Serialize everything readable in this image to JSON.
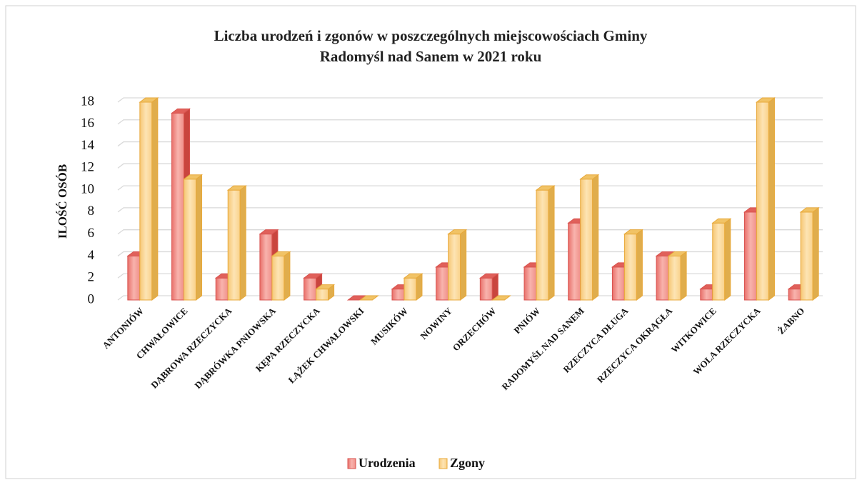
{
  "chart_data": {
    "type": "bar3d",
    "title": "Liczba urodzeń i zgonów w poszczególnych miejscowościach Gminy Radomyśl nad Sanem w 2021 roku",
    "y_label": "ILOŚĆ OSÓB",
    "categories": [
      "ANTONIÓW",
      "CHWAŁOWICE",
      "DĄBROWA RZECZYCKA",
      "DĄBRÓWKA PNIOWSKA",
      "KĘPA RZECZYCKA",
      "ŁĄŻEK CHWAŁOWSKI",
      "MUSIKÓW",
      "NOWINY",
      "ORZECHÓW",
      "PNIÓW",
      "RADOMYŚL NAD SANEM",
      "RZECZYCA DŁUGA",
      "RZECZYCA OKRĄGŁA",
      "WITKOWICE",
      "WOLA RZECZYCKA",
      "ŻABNO"
    ],
    "series": [
      {
        "name": "Urodzenia",
        "color": "#f4a29b",
        "values": [
          4,
          17,
          2,
          6,
          2,
          0,
          1,
          3,
          2,
          3,
          7,
          3,
          4,
          1,
          8,
          1
        ]
      },
      {
        "name": "Zgony",
        "color": "#fdd99a",
        "values": [
          18,
          11,
          10,
          4,
          1,
          0,
          2,
          6,
          0,
          10,
          11,
          6,
          4,
          7,
          18,
          8
        ]
      }
    ],
    "ylim": [
      0,
      18
    ],
    "yticks": [
      0,
      2,
      4,
      6,
      8,
      10,
      12,
      14,
      16,
      18
    ],
    "grid": true,
    "legend": "bottom"
  }
}
